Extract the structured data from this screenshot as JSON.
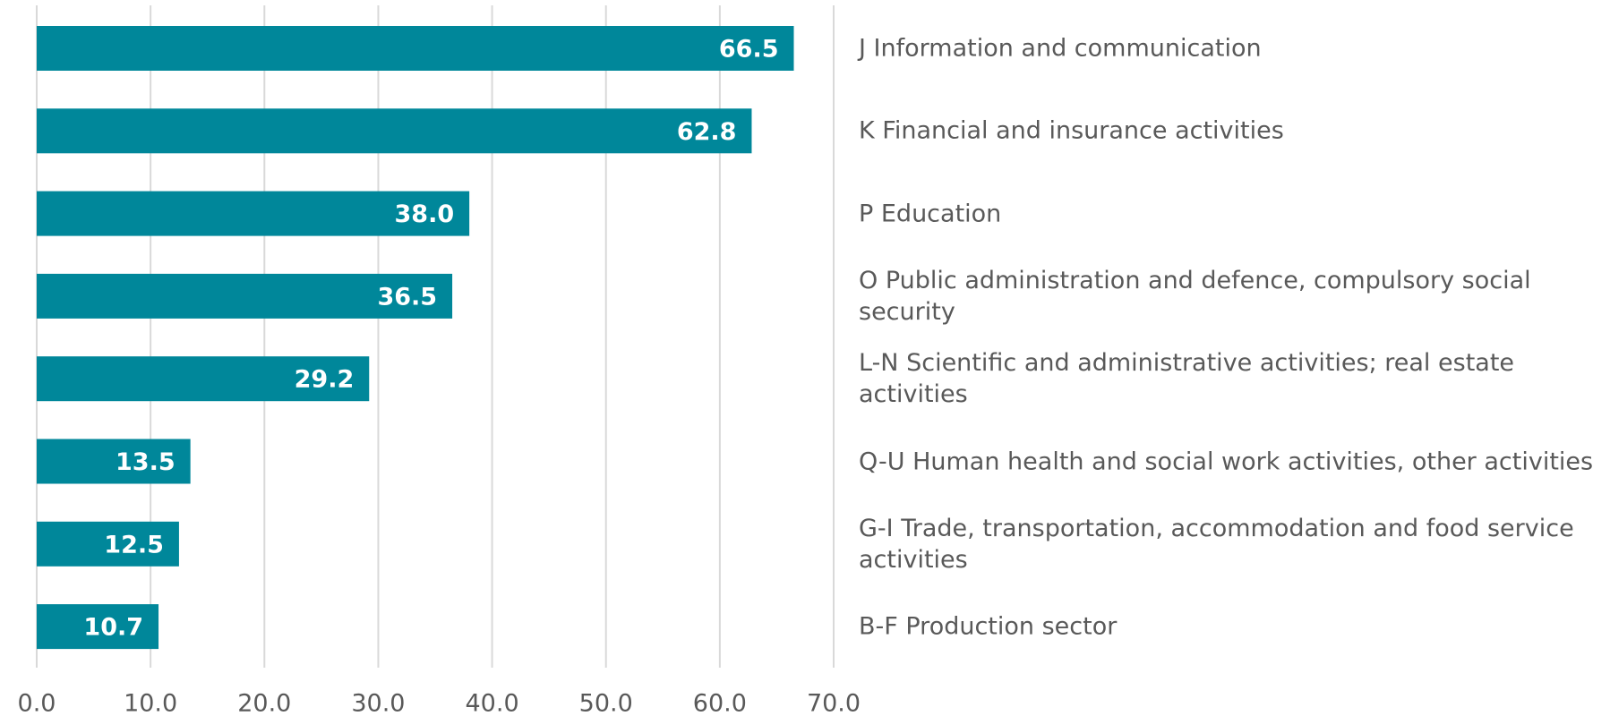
{
  "chart_data": {
    "type": "bar",
    "orientation": "horizontal",
    "categories": [
      "J Information and communication",
      "K Financial and insurance activities",
      "P Education",
      "O Public administration and defence, compulsory social security",
      "L-N Scientific and administrative activities; real estate activities",
      "Q-U Human health and social work activities, other activities",
      "G-I Trade, transportation, accommodation and food service activities",
      "B-F Production sector"
    ],
    "values": [
      66.5,
      62.8,
      38.0,
      36.5,
      29.2,
      13.5,
      12.5,
      10.7
    ],
    "value_labels": [
      "66.5",
      "62.8",
      "38.0",
      "36.5",
      "29.2",
      "13.5",
      "12.5",
      "10.7"
    ],
    "color": "#00879a",
    "xlim": [
      0,
      70
    ],
    "xticks": [
      {
        "value": 0,
        "label": "0.0"
      },
      {
        "value": 10,
        "label": "10.0"
      },
      {
        "value": 20,
        "label": "20.0"
      },
      {
        "value": 30,
        "label": "30.0"
      },
      {
        "value": 40,
        "label": "40.0"
      },
      {
        "value": 50,
        "label": "50.0"
      },
      {
        "value": 60,
        "label": "60.0"
      },
      {
        "value": 70,
        "label": "70.0"
      }
    ],
    "grid": true
  }
}
